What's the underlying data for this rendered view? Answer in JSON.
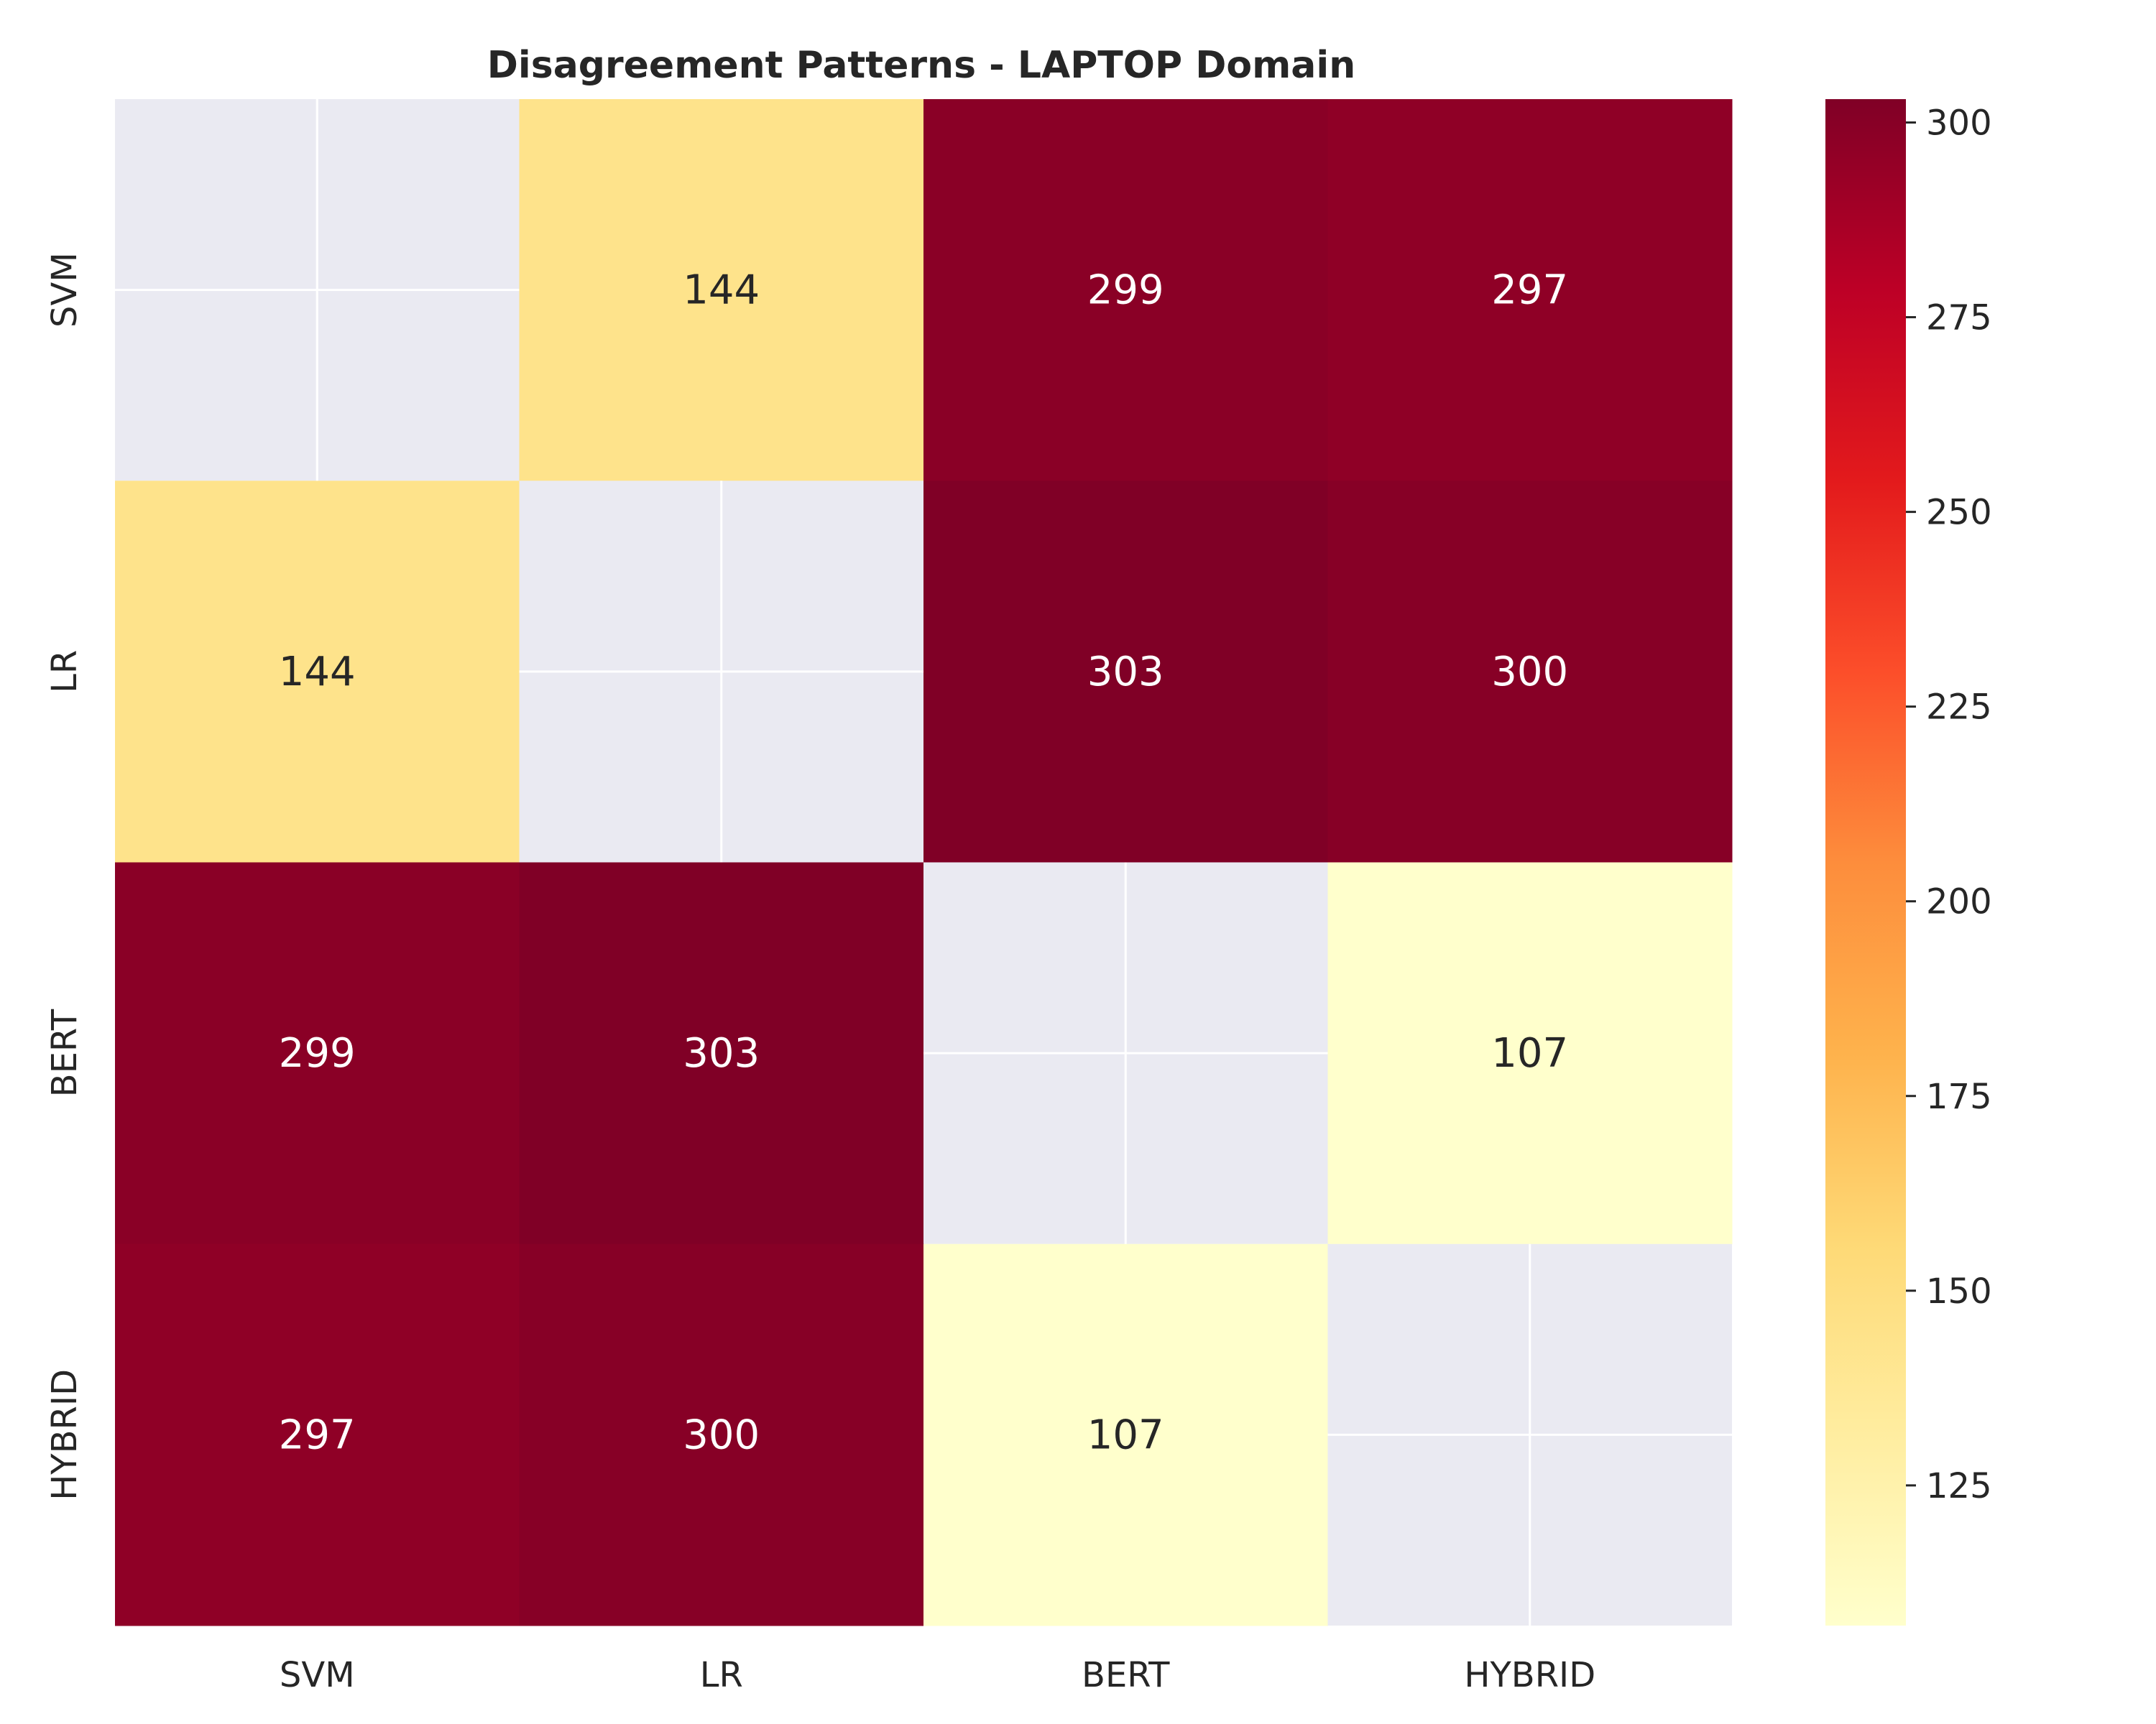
{
  "chart_data": {
    "type": "heatmap",
    "title": "Disagreement Patterns - LAPTOP Domain",
    "row_labels": [
      "SVM",
      "LR",
      "BERT",
      "HYBRID"
    ],
    "col_labels": [
      "SVM",
      "LR",
      "BERT",
      "HYBRID"
    ],
    "values": [
      [
        null,
        144,
        299,
        297
      ],
      [
        144,
        null,
        303,
        300
      ],
      [
        299,
        303,
        null,
        107
      ],
      [
        297,
        300,
        107,
        null
      ]
    ],
    "colorbar": {
      "colormap": "YlOrRd",
      "vmin": 107,
      "vmax": 303,
      "ticks": [
        125,
        150,
        175,
        200,
        225,
        250,
        275,
        300
      ]
    },
    "masked_cell_color": "#eaeaf2",
    "grid": true
  }
}
